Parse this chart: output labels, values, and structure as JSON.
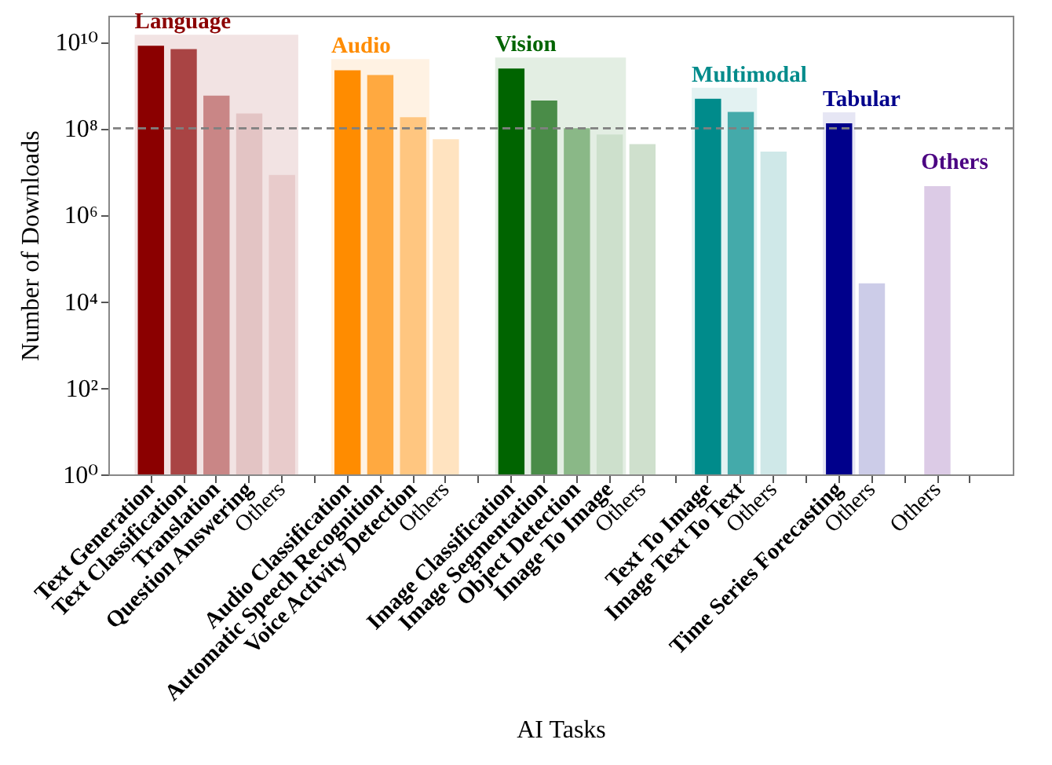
{
  "chart_data": {
    "type": "bar",
    "xlabel": "AI Tasks",
    "ylabel": "Number of Downloads",
    "log": "y",
    "categories": [
      "Text Generation",
      "Text Classification",
      "Translation",
      "Question Answering",
      "Others",
      null,
      "Audio Classification",
      "Automatic Speech Recognition",
      "Voice Activity Detection",
      "Others",
      null,
      "Image Classification",
      "Image Segmentation",
      "Object Detection",
      "Image To Image",
      "Others",
      null,
      "Text To Image",
      "Image Text To Text",
      "Others",
      null,
      "Time Series Forecasting",
      "Others",
      null,
      "Others",
      null
    ],
    "series": [
      {
        "name": "Language",
        "color": "#8b0000",
        "colors": [
          "#8b0000",
          "#a94444",
          "#c98686",
          "#e3c4c4",
          "#e8cbcb",
          null,
          null,
          null,
          null,
          null,
          null,
          null,
          null,
          null,
          null,
          null,
          null,
          null,
          null,
          null,
          null,
          null,
          null,
          null,
          null,
          null
        ],
        "values": [
          8100000000,
          6800000000,
          570000000,
          220000000,
          8300000,
          null,
          null,
          null,
          null,
          null,
          null,
          null,
          null,
          null,
          null,
          null,
          null,
          null,
          null,
          null,
          null,
          null,
          null,
          null,
          null,
          null
        ]
      },
      {
        "name": "Audio",
        "color": "#ff8c00",
        "colors": [
          null,
          null,
          null,
          null,
          null,
          null,
          "#ff8c00",
          "#ffa940",
          "#ffc680",
          "#ffe3c0",
          null,
          null,
          null,
          null,
          null,
          null,
          null,
          null,
          null,
          null,
          null,
          null,
          null,
          null,
          null,
          null
        ],
        "values": [
          null,
          null,
          null,
          null,
          null,
          null,
          2200000000,
          1700000000,
          180000000,
          56000000,
          null,
          null,
          null,
          null,
          null,
          null,
          null,
          null,
          null,
          null,
          null,
          null,
          null,
          null,
          null,
          null
        ]
      },
      {
        "name": "Vision",
        "color": "#006400",
        "colors": [
          null,
          null,
          null,
          null,
          null,
          null,
          null,
          null,
          null,
          null,
          null,
          "#006400",
          "#4a8c48",
          "#8ab887",
          "#cde0cc",
          "#cfe0cd",
          null,
          null,
          null,
          null,
          null,
          null,
          null,
          null,
          null,
          null
        ],
        "values": [
          null,
          null,
          null,
          null,
          null,
          null,
          null,
          null,
          null,
          null,
          null,
          2400000000,
          440000000,
          100000000,
          72000000,
          43000000,
          null,
          null,
          null,
          null,
          null,
          null,
          null,
          null,
          null,
          null
        ]
      },
      {
        "name": "Multimodal",
        "color": "#008b8b",
        "colors": [
          null,
          null,
          null,
          null,
          null,
          null,
          null,
          null,
          null,
          null,
          null,
          null,
          null,
          null,
          null,
          null,
          null,
          "#008b8b",
          "#44aaaa",
          "#cfe8e8",
          null,
          null,
          null,
          null,
          null,
          null
        ],
        "values": [
          null,
          null,
          null,
          null,
          null,
          null,
          null,
          null,
          null,
          null,
          null,
          null,
          null,
          null,
          null,
          null,
          null,
          480000000,
          240000000,
          29000000,
          null,
          null,
          null,
          null,
          null,
          null
        ]
      },
      {
        "name": "Tabular",
        "color": "#00008b",
        "colors": [
          null,
          null,
          null,
          null,
          null,
          null,
          null,
          null,
          null,
          null,
          null,
          null,
          null,
          null,
          null,
          null,
          null,
          null,
          null,
          null,
          null,
          "#00008b",
          "#ccccE8",
          null,
          null,
          null
        ],
        "values": [
          null,
          null,
          null,
          null,
          null,
          null,
          null,
          null,
          null,
          null,
          null,
          null,
          null,
          null,
          null,
          null,
          null,
          null,
          null,
          null,
          null,
          130000000,
          26000,
          null,
          null,
          null
        ]
      },
      {
        "name": "Others",
        "color": "#4b0082",
        "colors": [
          null,
          null,
          null,
          null,
          null,
          null,
          null,
          null,
          null,
          null,
          null,
          null,
          null,
          null,
          null,
          null,
          null,
          null,
          null,
          null,
          null,
          null,
          null,
          null,
          "#dccbe6",
          null
        ],
        "values": [
          null,
          null,
          null,
          null,
          null,
          null,
          null,
          null,
          null,
          null,
          null,
          null,
          null,
          null,
          null,
          null,
          null,
          null,
          null,
          null,
          null,
          null,
          null,
          null,
          4600000,
          null
        ]
      }
    ],
    "ylim": [
      1,
      40000000000
    ],
    "yticks": [
      {
        "value": 1,
        "label": "10⁰"
      },
      {
        "value": 100,
        "label": "10²"
      },
      {
        "value": 10000,
        "label": "10⁴"
      },
      {
        "value": 1000000,
        "label": "10⁶"
      },
      {
        "value": 100000000,
        "label": "10⁸"
      },
      {
        "value": 10000000000,
        "label": "10¹⁰"
      }
    ],
    "ref_lines": [
      {
        "axis": "y",
        "value": 100000000,
        "color": "#808080",
        "line_style": "dashed"
      }
    ],
    "bands": [
      {
        "axis": "x",
        "from": "Text Generation",
        "to": "Others",
        "color": "#f2e3e3"
      },
      {
        "axis": "x",
        "from": "Audio Classification",
        "to": "Voice Activity Detection",
        "color": "#fff2e3"
      },
      {
        "axis": "x",
        "from": "Image Classification",
        "to": "Image To Image",
        "color": "#e3eee3"
      },
      {
        "axis": "x",
        "from": "Text To Image",
        "to": "Image Text To Text",
        "color": "#e3f2f2"
      },
      {
        "axis": "x",
        "from": "Time Series Forecasting",
        "to": "Time Series Forecasting",
        "color": "#e6e6f4"
      }
    ],
    "grid": false
  }
}
